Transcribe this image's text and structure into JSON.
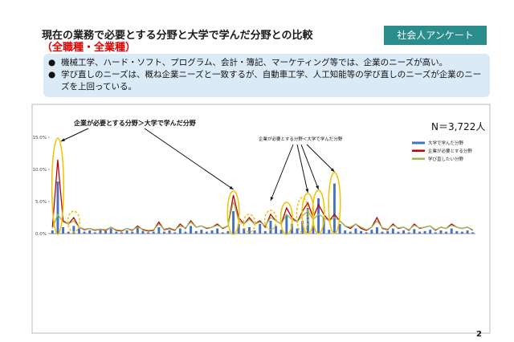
{
  "header": {
    "title": "現在の業務で必要とする分野と大学で学んだ分野との比較",
    "subtitle": "（全職種・全業種）",
    "badge": "社会人アンケート"
  },
  "bullets": [
    "機械工学、ハード・ソフト、プログラム、会計・簿記、マーケティング等では、企業のニーズが高い。",
    "学び直しのニーズは、概ね企業ニーズと一致するが、自動車工学、人工知能等の学び直しのニーズが企業のニーズを上回っている。"
  ],
  "chart_data": {
    "type": "bar-line",
    "annotations": [
      "企業が必要とする分野＞大学で学んだ分野",
      "企業が必要とする分野＜大学で学んだ分野"
    ],
    "n_label": "N＝3,722人",
    "categories": [
      null,
      null,
      null,
      null,
      null,
      null,
      null,
      null,
      null,
      null,
      null,
      null,
      null,
      null,
      null,
      null,
      null,
      null,
      null,
      null,
      null,
      null,
      null,
      null,
      null,
      null,
      null,
      null,
      null,
      null,
      null,
      null,
      null,
      null,
      null,
      null,
      null,
      null,
      null,
      null,
      null,
      null,
      null,
      null,
      null,
      null,
      null,
      null,
      null,
      null,
      null,
      null,
      null,
      null,
      null,
      null,
      null,
      null,
      null,
      null,
      null,
      null,
      null,
      null,
      null,
      null,
      null,
      null,
      null,
      null,
      null,
      null,
      null,
      null,
      null,
      null,
      null,
      null,
      null,
      null
    ],
    "series": [
      {
        "name": "大学で学んだ分野",
        "kind": "bar",
        "color": "#4472c4",
        "values": [
          0.5,
          8.1,
          1.0,
          0.3,
          1.2,
          0.8,
          0.3,
          0.5,
          0.2,
          0.6,
          0.4,
          0.8,
          0.3,
          0.2,
          0.5,
          0.3,
          0.9,
          0.4,
          0.2,
          0.3,
          1.0,
          0.3,
          0.5,
          0.2,
          0.8,
          0.3,
          1.2,
          0.4,
          0.6,
          0.3,
          0.5,
          0.8,
          0.2,
          0.4,
          3.5,
          1.5,
          0.8,
          1.0,
          0.5,
          1.5,
          0.4,
          2.0,
          1.2,
          0.6,
          3.0,
          1.5,
          0.8,
          2.0,
          4.0,
          1.2,
          5.5,
          2.5,
          0.6,
          7.8,
          1.5,
          0.5,
          0.3,
          0.8,
          0.4,
          0.2,
          0.6,
          1.0,
          0.3,
          0.4,
          0.8,
          0.3,
          0.5,
          0.2,
          0.7,
          0.3,
          0.4,
          0.6,
          0.2,
          0.5,
          0.3,
          0.8,
          0.4,
          0.3,
          0.5,
          0.2
        ]
      },
      {
        "name": "企業が必要とする分野",
        "kind": "line",
        "color": "#c00000",
        "values": [
          1.0,
          11.5,
          2.0,
          1.5,
          2.5,
          1.0,
          0.6,
          0.8,
          0.5,
          0.7,
          0.5,
          1.0,
          0.5,
          0.4,
          0.8,
          0.5,
          1.2,
          0.6,
          0.4,
          0.5,
          1.8,
          0.6,
          0.8,
          0.5,
          1.5,
          0.8,
          2.0,
          1.0,
          1.2,
          0.8,
          1.0,
          1.5,
          0.8,
          1.2,
          6.0,
          2.5,
          1.5,
          2.5,
          1.5,
          2.0,
          1.0,
          3.0,
          2.0,
          1.5,
          4.0,
          2.5,
          1.8,
          3.5,
          4.8,
          2.5,
          4.5,
          3.0,
          2.0,
          3.0,
          2.0,
          1.2,
          0.8,
          1.5,
          0.8,
          0.5,
          1.0,
          2.5,
          0.8,
          0.6,
          1.5,
          0.8,
          1.0,
          0.5,
          1.5,
          0.8,
          1.0,
          1.2,
          0.5,
          1.0,
          0.8,
          1.5,
          1.0,
          0.8,
          1.0,
          0.5
        ]
      },
      {
        "name": "学び直したい分野",
        "kind": "line",
        "color": "#9bbb59",
        "values": [
          0.8,
          3.0,
          1.8,
          1.5,
          2.0,
          1.0,
          0.7,
          0.8,
          0.6,
          0.7,
          0.6,
          1.0,
          0.6,
          0.5,
          0.8,
          0.6,
          1.0,
          0.7,
          0.5,
          0.6,
          1.5,
          0.7,
          0.9,
          0.6,
          1.2,
          0.9,
          1.8,
          1.0,
          1.2,
          0.9,
          1.0,
          1.3,
          0.9,
          1.2,
          5.0,
          2.0,
          1.5,
          2.2,
          1.5,
          1.8,
          1.2,
          2.5,
          2.0,
          1.5,
          3.0,
          2.2,
          1.8,
          2.8,
          3.5,
          2.2,
          3.0,
          2.5,
          2.0,
          2.5,
          2.0,
          1.2,
          1.0,
          1.5,
          1.0,
          0.6,
          1.0,
          2.0,
          0.9,
          0.7,
          1.3,
          0.9,
          1.0,
          0.6,
          1.3,
          0.9,
          1.0,
          1.2,
          0.6,
          1.0,
          0.8,
          1.3,
          1.0,
          0.8,
          1.0,
          0.6
        ]
      }
    ],
    "ylim": [
      0,
      15
    ],
    "yticks": [
      {
        "value": 0,
        "label": "0.0%"
      },
      {
        "value": 5,
        "label": "5.0%"
      },
      {
        "value": 10,
        "label": "10.0%"
      },
      {
        "value": 15,
        "label": "15.0%"
      }
    ],
    "grid": false
  },
  "page_number": "2"
}
